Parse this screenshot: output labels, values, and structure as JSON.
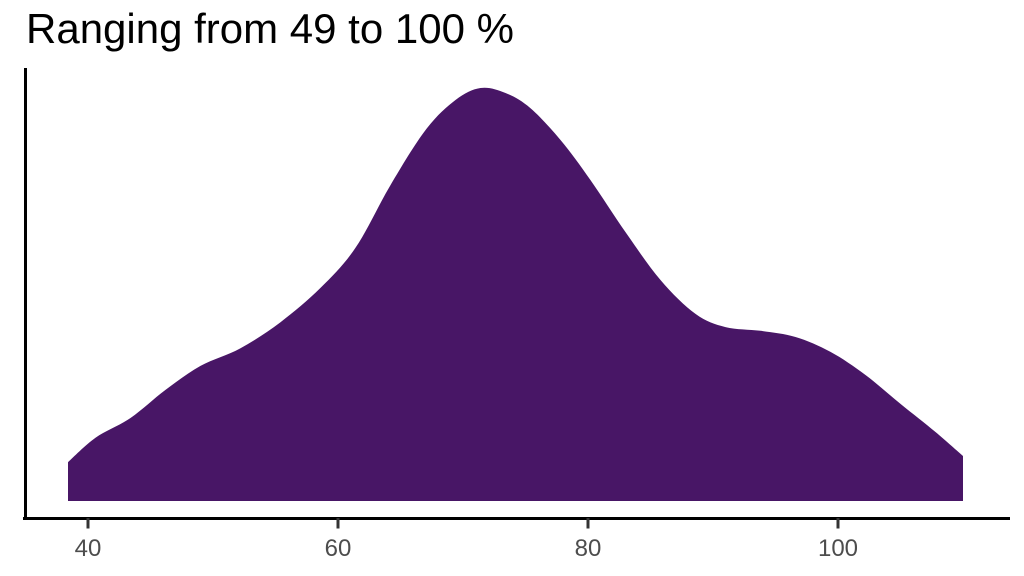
{
  "title": "Ranging from 49 to 100 %",
  "colors": {
    "title": "#000000",
    "fill": "#481666",
    "axis": "#000000",
    "tick": "#333333",
    "tick_label": "#4d4d4d",
    "background": "#ffffff"
  },
  "chart_data": {
    "type": "area",
    "subtype": "density",
    "title": "Ranging from 49 to 100 %",
    "xlabel": "",
    "ylabel": "",
    "legend": "none",
    "grid": false,
    "x_ticks": [
      40,
      60,
      80,
      100
    ],
    "xlim": [
      35,
      114
    ],
    "ylim": [
      0,
      1.08
    ],
    "series": [
      {
        "name": "density",
        "x": [
          38.4,
          40.6,
          43.4,
          46.2,
          49.0,
          52.2,
          55.4,
          58.6,
          61.4,
          64.2,
          67.0,
          69.4,
          71.4,
          73.4,
          75.4,
          77.8,
          80.2,
          83.0,
          85.8,
          88.6,
          91.0,
          93.8,
          96.6,
          99.4,
          102.2,
          105.0,
          107.8,
          110.0
        ],
        "y": [
          0.094,
          0.153,
          0.201,
          0.269,
          0.327,
          0.37,
          0.433,
          0.516,
          0.613,
          0.765,
          0.898,
          0.971,
          1.0,
          0.988,
          0.951,
          0.874,
          0.777,
          0.651,
          0.535,
          0.453,
          0.421,
          0.412,
          0.397,
          0.361,
          0.305,
          0.235,
          0.167,
          0.109
        ]
      }
    ]
  }
}
